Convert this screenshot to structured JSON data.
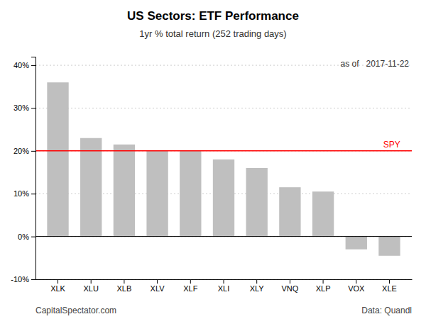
{
  "chart_data": {
    "type": "bar",
    "title": "US Sectors: ETF Performance",
    "subtitle": "1yr % total return (252 trading days)",
    "annotations": [
      "as of   2017-11-22"
    ],
    "footer": [
      "CapitalSpectator.com",
      "Data: Quandl"
    ],
    "categories": [
      "XLK",
      "XLU",
      "XLB",
      "XLV",
      "XLF",
      "XLI",
      "XLY",
      "VNQ",
      "XLP",
      "VOX",
      "XLE"
    ],
    "values": [
      36.0,
      23.0,
      21.5,
      20.0,
      20.0,
      18.0,
      16.0,
      11.5,
      10.5,
      -3.0,
      -4.5
    ],
    "color": "#bfbfbf",
    "reference_line": {
      "value": 20.0,
      "label": "SPY",
      "color": "#ff0000"
    },
    "ylim": [
      -10,
      42
    ],
    "yticks": [
      {
        "value": -10,
        "label": "-10%"
      },
      {
        "value": 0,
        "label": "0%"
      },
      {
        "value": 10,
        "label": "10%"
      },
      {
        "value": 20,
        "label": "20%"
      },
      {
        "value": 30,
        "label": "30%"
      },
      {
        "value": 40,
        "label": "40%"
      }
    ],
    "grid": true
  }
}
